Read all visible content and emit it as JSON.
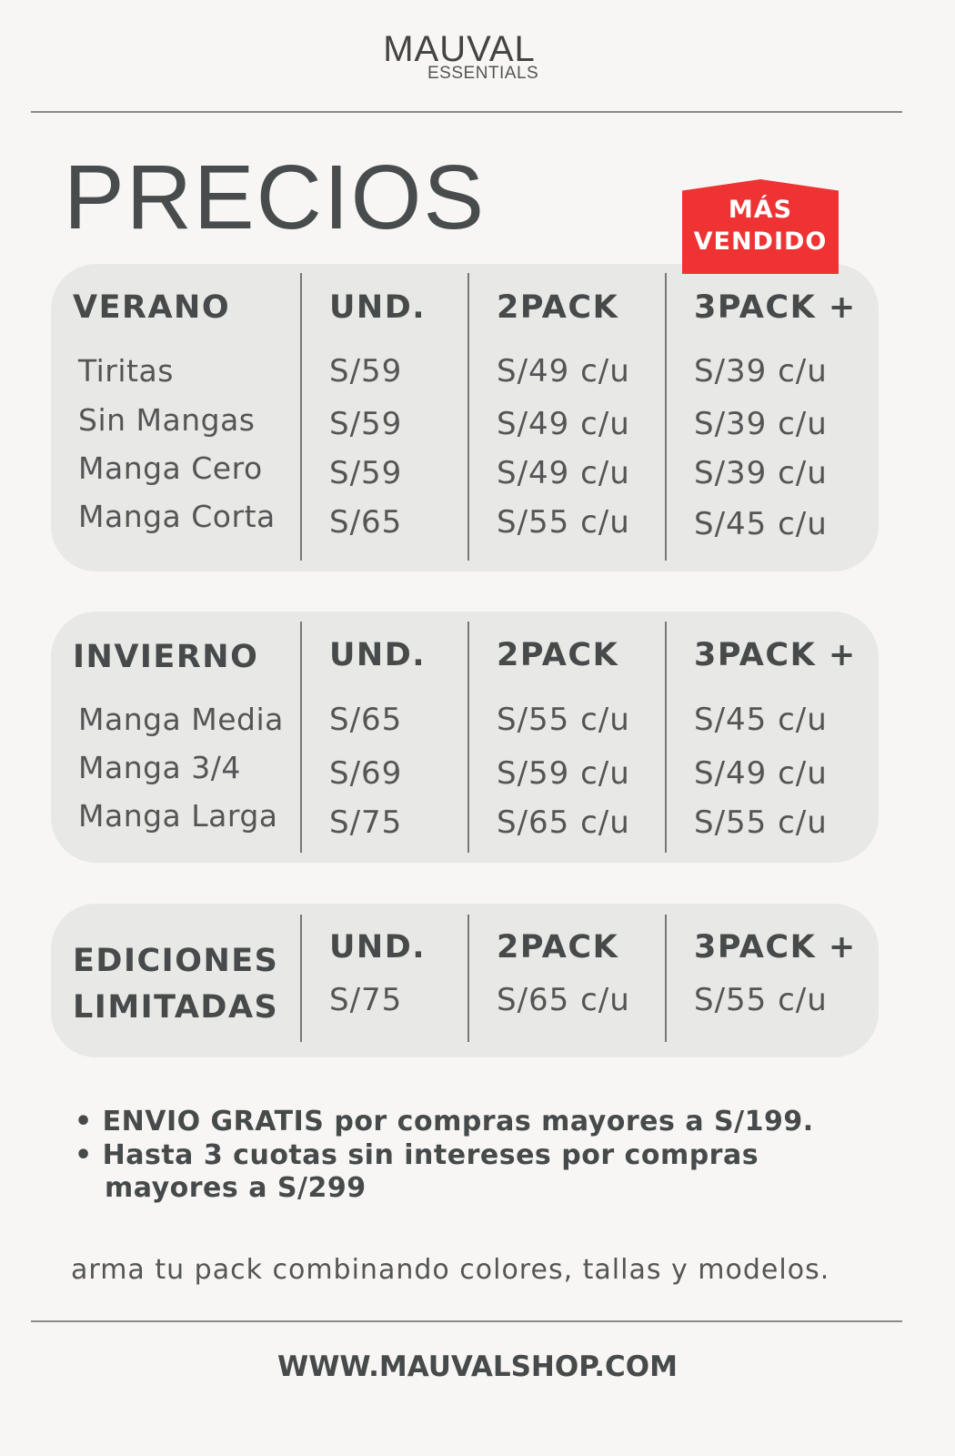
{
  "brand": {
    "name": "MAUVAL",
    "tagline": "ESSENTIALS"
  },
  "title": "PRECIOS",
  "badge": {
    "line1": "MÁS",
    "line2": "VENDIDO",
    "color": "#ef3232"
  },
  "columns": [
    "UND.",
    "2PACK",
    "3PACK +"
  ],
  "sections": [
    {
      "title": "VERANO",
      "rows": [
        {
          "name": "Tiritas",
          "und": "S/59",
          "pack2": "S/49 c/u",
          "pack3": "S/39 c/u"
        },
        {
          "name": "Sin Mangas",
          "und": "S/59",
          "pack2": "S/49 c/u",
          "pack3": "S/39 c/u"
        },
        {
          "name": "Manga Cero",
          "und": "S/59",
          "pack2": "S/49 c/u",
          "pack3": "S/39 c/u"
        },
        {
          "name": "Manga Corta",
          "und": "S/65",
          "pack2": "S/55 c/u",
          "pack3": "S/45 c/u"
        }
      ]
    },
    {
      "title": "INVIERNO",
      "rows": [
        {
          "name": "Manga Media",
          "und": "S/65",
          "pack2": "S/55 c/u",
          "pack3": "S/45 c/u"
        },
        {
          "name": "Manga 3/4",
          "und": "S/69",
          "pack2": "S/59 c/u",
          "pack3": "S/49 c/u"
        },
        {
          "name": "Manga Larga",
          "und": "S/75",
          "pack2": "S/65 c/u",
          "pack3": "S/55 c/u"
        }
      ]
    },
    {
      "title_line1": "EDICIONES",
      "title_line2": "LIMITADAS",
      "rows": [
        {
          "und": "S/75",
          "pack2": "S/65 c/u",
          "pack3": "S/55 c/u"
        }
      ]
    }
  ],
  "notes": [
    {
      "bold": "ENVIO GRATIS",
      "text": " por compras mayores a S/199."
    },
    {
      "text": "Hasta 3 cuotas sin intereses por compras",
      "text2": "mayores a S/299"
    }
  ],
  "tagline": "arma tu pack combinando colores, tallas y modelos.",
  "url": "WWW.MAUVALSHOP.COM"
}
